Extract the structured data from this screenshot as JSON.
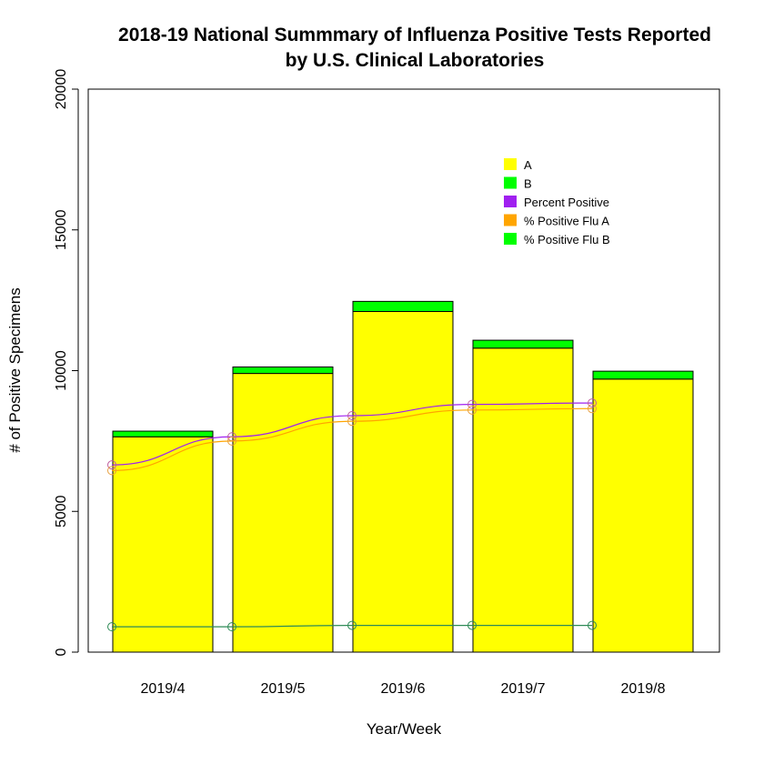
{
  "chart_data": {
    "type": "bar",
    "title": "2018-19 National Summmary of Influenza Positive Tests Reported",
    "subtitle": "by U.S. Clinical Laboratories",
    "xlabel": "Year/Week",
    "ylabel": "# of Positive Specimens",
    "categories": [
      "2019/4",
      "2019/5",
      "2019/6",
      "2019/7",
      "2019/8"
    ],
    "ylim": [
      0,
      20000
    ],
    "yticks": [
      "0",
      "5000",
      "10000",
      "15000",
      "20000"
    ],
    "stacked": true,
    "series": [
      {
        "name": "A",
        "values": [
          7650,
          9900,
          12100,
          10800,
          9700
        ],
        "color": "#ffff00"
      },
      {
        "name": "B",
        "values": [
          200,
          230,
          360,
          280,
          280
        ],
        "color": "#00ff00"
      }
    ],
    "lines": [
      {
        "name": "Percent Positive",
        "values": [
          6650,
          7650,
          8400,
          8800,
          8850
        ],
        "color": "#a020f0"
      },
      {
        "name": "% Positive Flu A",
        "values": [
          6450,
          7500,
          8200,
          8600,
          8650
        ],
        "color": "#ffa500"
      },
      {
        "name": "% Positive Flu B",
        "values": [
          900,
          900,
          950,
          950,
          950
        ],
        "color": "#00ff00",
        "line_color": "#2e8b57"
      }
    ],
    "grid": false,
    "legend_position": "top-right"
  }
}
